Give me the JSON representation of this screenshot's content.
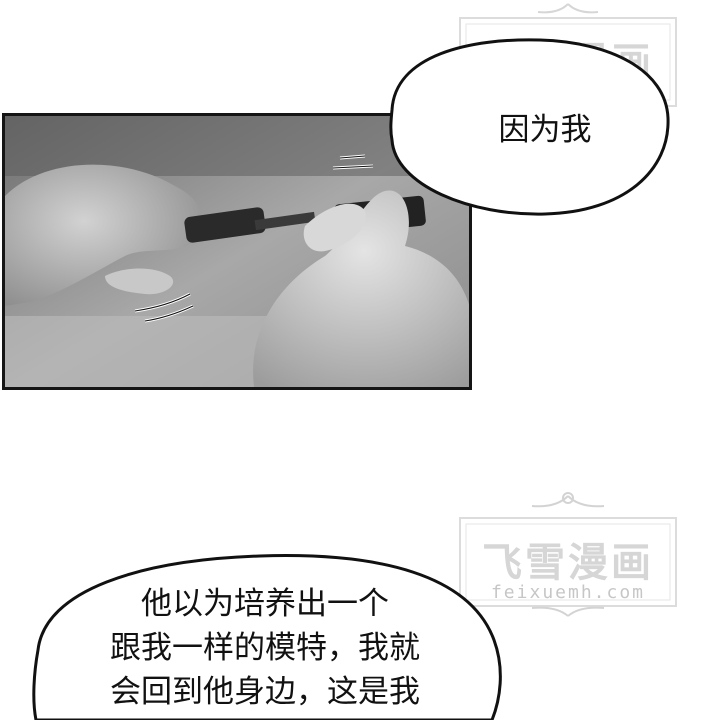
{
  "watermark": {
    "title": "飞雪漫画",
    "url": "feixuemh.com",
    "color": "#cfcfcf"
  },
  "bubbles": {
    "top_right": {
      "text": "因为我"
    },
    "bottom_left": {
      "lines": [
        "他以为培养出一个",
        "跟我一样的模特，我就",
        "会回到他身边，这是我"
      ]
    }
  },
  "panel": {
    "description_icon": "hands-plugging-cable-icon",
    "tone": "#9a9a9a"
  }
}
